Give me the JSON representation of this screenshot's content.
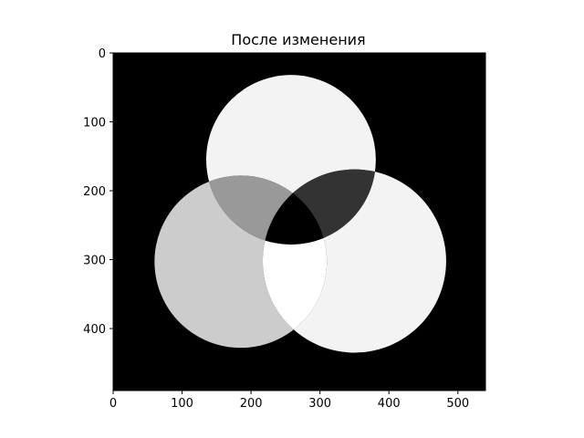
{
  "chart_data": {
    "type": "image",
    "title": "После изменения",
    "xlabel": "",
    "ylabel": "",
    "image_size": {
      "width": 540,
      "height": 490
    },
    "xlim": [
      0,
      540
    ],
    "ylim": [
      490,
      0
    ],
    "x_ticks": [
      0,
      100,
      200,
      300,
      400,
      500
    ],
    "y_ticks": [
      0,
      100,
      200,
      300,
      400
    ],
    "colormap": "gray",
    "background_value": 0,
    "circles": [
      {
        "name": "top",
        "cx": 258,
        "cy": 155,
        "r": 123
      },
      {
        "name": "left",
        "cx": 185,
        "cy": 303,
        "r": 125
      },
      {
        "name": "right",
        "cx": 350,
        "cy": 302,
        "r": 133
      }
    ],
    "regions": [
      {
        "circles": [
          "top"
        ],
        "gray": 243
      },
      {
        "circles": [
          "left"
        ],
        "gray": 204
      },
      {
        "circles": [
          "right"
        ],
        "gray": 243
      },
      {
        "circles": [
          "top",
          "left"
        ],
        "gray": 153
      },
      {
        "circles": [
          "top",
          "right"
        ],
        "gray": 51
      },
      {
        "circles": [
          "left",
          "right"
        ],
        "gray": 255
      },
      {
        "circles": [
          "top",
          "left",
          "right"
        ],
        "gray": 0
      }
    ]
  }
}
